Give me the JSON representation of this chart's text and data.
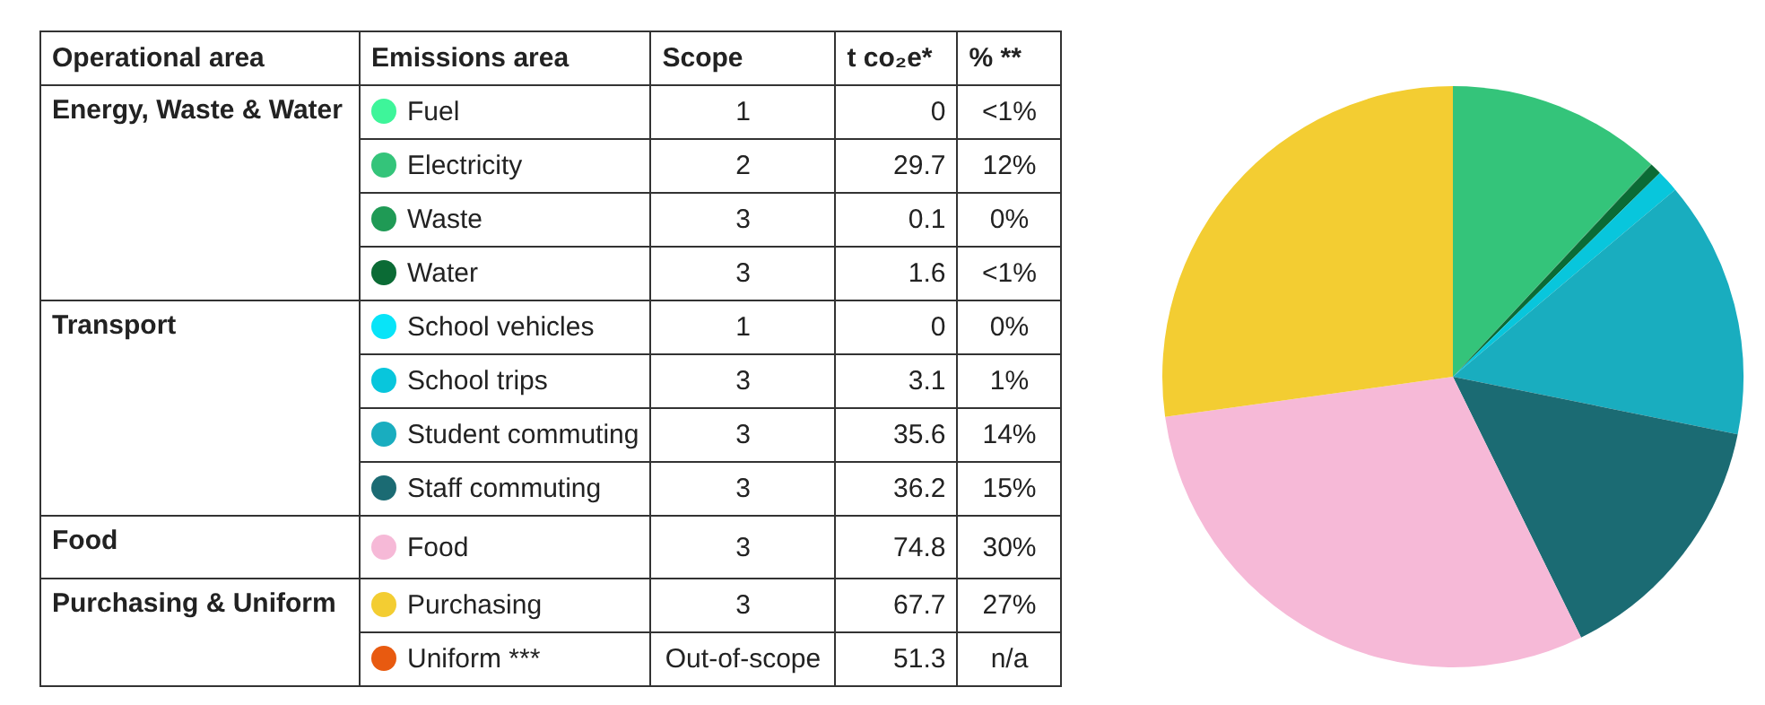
{
  "chart_data": {
    "type": "pie",
    "categories": [
      "Fuel",
      "Electricity",
      "Waste",
      "Water",
      "School vehicles",
      "School trips",
      "Student commuting",
      "Staff commuting",
      "Food",
      "Purchasing",
      "Uniform ***"
    ],
    "values": [
      0,
      29.7,
      0.1,
      1.6,
      0,
      3.1,
      35.6,
      36.2,
      74.8,
      67.7,
      null
    ],
    "colors": [
      "#3ef59a",
      "#34c47a",
      "#1f9a55",
      "#0b6b35",
      "#08e4f8",
      "#08c6dc",
      "#19adbf",
      "#1b6b73",
      "#f6b9d7",
      "#f3cd32",
      "#e85a10"
    ],
    "value_labels": [
      "0",
      "29.7",
      "0.1",
      "1.6",
      "0",
      "3.1",
      "35.6",
      "36.2",
      "74.8",
      "67.7",
      "51.3"
    ],
    "annotations": [
      "Operational area",
      "Emissions area",
      "Scope",
      "t co₂e*",
      "% **",
      "Energy, Waste & Water",
      "Transport",
      "Food",
      "Purchasing & Uniform",
      "1",
      "2",
      "3",
      "3",
      "1",
      "3",
      "3",
      "3",
      "3",
      "3",
      "Out-of-scope",
      "<1%",
      "12%",
      "0%",
      "<1%",
      "0%",
      "1%",
      "14%",
      "15%",
      "30%",
      "27%",
      "n/a"
    ],
    "legend": "left"
  }
}
